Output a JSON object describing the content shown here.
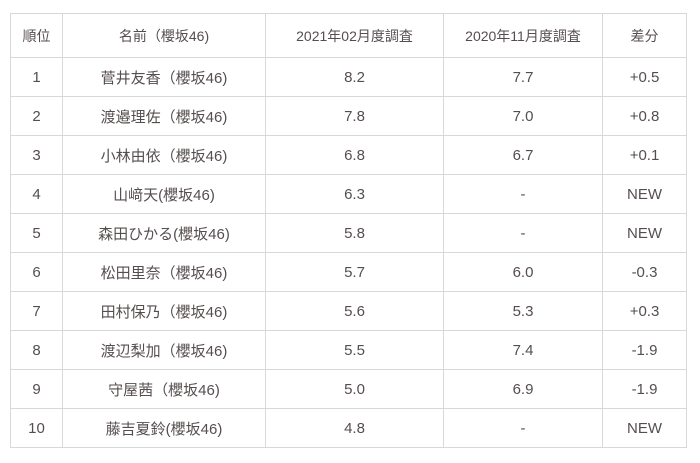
{
  "colors": {
    "text": "#564e4e",
    "border": "#d8d8d8",
    "background": "#ffffff"
  },
  "table": {
    "columns": [
      "順位",
      "名前（櫻坂46)",
      "2021年02月度調査",
      "2020年11月度調査",
      "差分"
    ],
    "rows": [
      [
        "1",
        "菅井友香（櫻坂46)",
        "8.2",
        "7.7",
        "+0.5"
      ],
      [
        "2",
        "渡邉理佐（櫻坂46)",
        "7.8",
        "7.0",
        "+0.8"
      ],
      [
        "3",
        "小林由依（櫻坂46)",
        "6.8",
        "6.7",
        "+0.1"
      ],
      [
        "4",
        "山﨑天(櫻坂46)",
        "6.3",
        "-",
        "NEW"
      ],
      [
        "5",
        "森田ひかる(櫻坂46)",
        "5.8",
        "-",
        "NEW"
      ],
      [
        "6",
        "松田里奈（櫻坂46)",
        "5.7",
        "6.0",
        "-0.3"
      ],
      [
        "7",
        "田村保乃（櫻坂46)",
        "5.6",
        "5.3",
        "+0.3"
      ],
      [
        "8",
        "渡辺梨加（櫻坂46)",
        "5.5",
        "7.4",
        "-1.9"
      ],
      [
        "9",
        "守屋茜（櫻坂46)",
        "5.0",
        "6.9",
        "-1.9"
      ],
      [
        "10",
        "藤吉夏鈴(櫻坂46)",
        "4.8",
        "-",
        "NEW"
      ]
    ]
  }
}
